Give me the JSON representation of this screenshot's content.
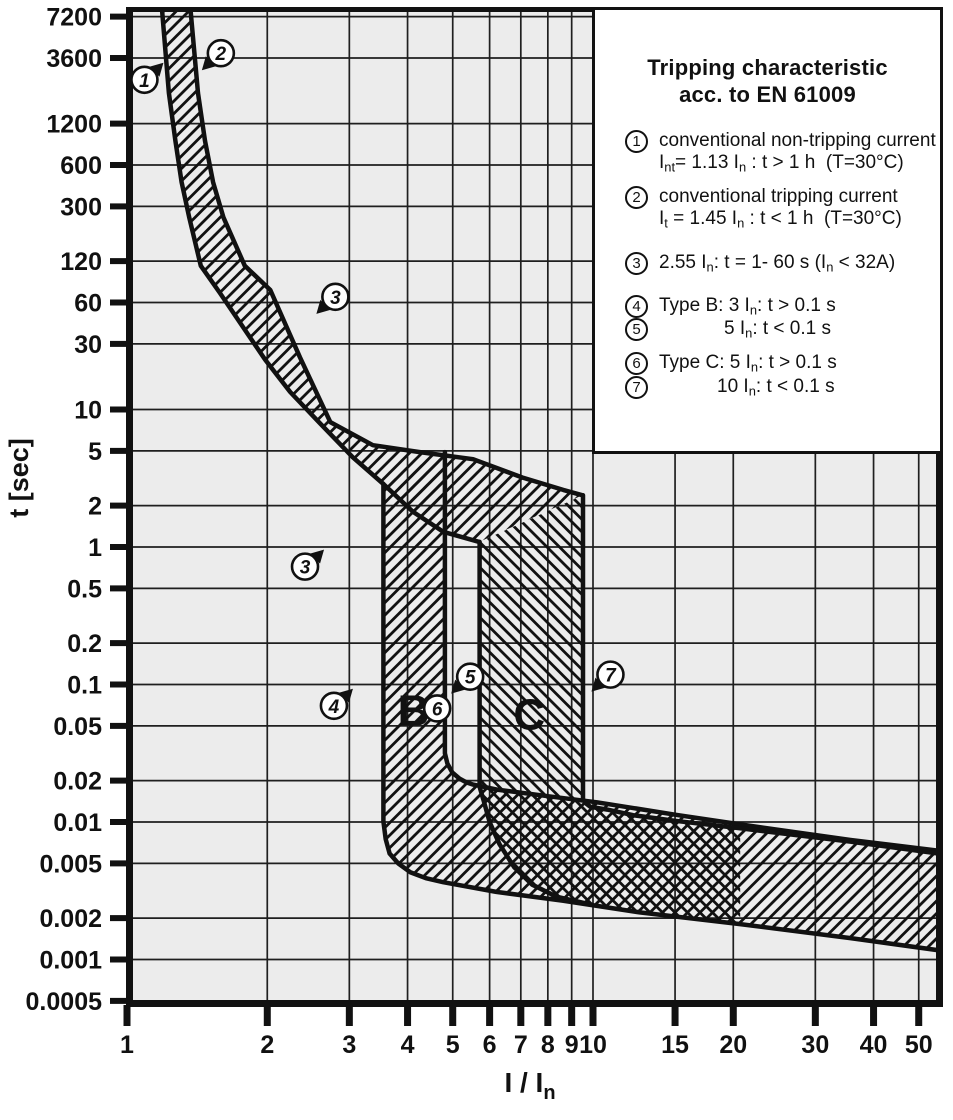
{
  "colors": {
    "ink": "#111111",
    "plot_bg": "#ececec",
    "paper": "#ffffff",
    "grid": "#1f1f1f"
  },
  "legend": {
    "title_line1": "Tripping characteristic",
    "title_line2": "acc. to EN 61009",
    "items": [
      {
        "num": "1",
        "line1": "conventional non-tripping current",
        "line2": "I_{nt}= 1.13 I_{n} : t > 1 h  (T=30°C)"
      },
      {
        "num": "2",
        "line1": "conventional tripping current",
        "line2": "I_{t} = 1.45 I_{n} : t < 1 h  (T=30°C)"
      },
      {
        "num": "3",
        "line1": "2.55 I_{n}: t = 1- 60 s (I_{n} < 32A)"
      },
      {
        "num": "4",
        "line1": "Type B: 3 I_{n}: t > 0.1 s"
      },
      {
        "num": "5",
        "line1": "5 I_{n}: t < 0.1 s"
      },
      {
        "num": "6",
        "line1": "Type C: 5 I_{n}: t > 0.1 s"
      },
      {
        "num": "7",
        "line1": "10 I_{n}: t < 0.1 s"
      }
    ]
  },
  "chart_data": {
    "type": "area",
    "title": "Tripping characteristic acc. to EN 61009",
    "xlabel": "I / I_{n}",
    "ylabel": "t [sec]",
    "x_scale": "log",
    "y_scale": "log",
    "xlim": [
      1,
      56
    ],
    "ylim": [
      0.0005,
      7800
    ],
    "grid": true,
    "x_ticks": [
      1,
      2,
      3,
      4,
      5,
      6,
      7,
      8,
      9,
      10,
      15,
      20,
      30,
      40,
      50
    ],
    "x_tick_labels": [
      "1",
      "2",
      "3",
      "4",
      "5",
      "6",
      "7",
      "8",
      "9",
      "10",
      "15",
      "20",
      "30",
      "40",
      "50"
    ],
    "y_ticks": [
      7200,
      3600,
      1200,
      600,
      300,
      120,
      60,
      30,
      10,
      5,
      2,
      1,
      0.5,
      0.2,
      0.1,
      0.05,
      0.02,
      0.01,
      0.005,
      0.002,
      0.001,
      0.0005
    ],
    "y_tick_labels": [
      "7200",
      "3600",
      "1200",
      "600",
      "300",
      "120",
      "60",
      "30",
      "10",
      "5",
      "2",
      "1",
      "0.5",
      "0.2",
      "0.1",
      "0.05",
      "0.02",
      "0.01",
      "0.005",
      "0.002",
      "0.001",
      "0.0005"
    ],
    "bands": {
      "thermal": {
        "hatch": "fwd",
        "curve1_nontripping_1_13In": [
          [
            1.19,
            7800
          ],
          [
            1.23,
            2000
          ],
          [
            1.27,
            900
          ],
          [
            1.31,
            450
          ],
          [
            1.36,
            250
          ],
          [
            1.44,
            111
          ],
          [
            1.58,
            71
          ],
          [
            1.98,
            23
          ],
          [
            2.24,
            13.4
          ],
          [
            2.58,
            8.1
          ],
          [
            3.05,
            4.5
          ],
          [
            3.55,
            2.87
          ],
          [
            4.11,
            1.8
          ],
          [
            4.77,
            1.29
          ],
          [
            5.7,
            1.09
          ]
        ],
        "curve2_tripping_1_45In": [
          [
            1.37,
            7800
          ],
          [
            1.42,
            2000
          ],
          [
            1.47,
            900
          ],
          [
            1.53,
            450
          ],
          [
            1.61,
            250
          ],
          [
            1.79,
            111
          ],
          [
            2.03,
            74
          ],
          [
            2.35,
            24
          ],
          [
            2.73,
            8.1
          ],
          [
            3.37,
            5.5
          ],
          [
            4.25,
            4.9
          ],
          [
            5.53,
            4.35
          ],
          [
            7.05,
            3.2
          ],
          [
            8.63,
            2.6
          ],
          [
            9.48,
            2.38
          ]
        ]
      },
      "type_b": {
        "hatch": "fwd",
        "magnetic_range_In": [
          3,
          5
        ],
        "left_bottom_edge": [
          [
            3.55,
            2.87
          ],
          [
            3.55,
            0.0101
          ],
          [
            3.59,
            0.0075
          ],
          [
            3.66,
            0.0059
          ],
          [
            3.82,
            0.005
          ],
          [
            4.06,
            0.0043
          ],
          [
            4.38,
            0.0039
          ],
          [
            4.77,
            0.00365
          ],
          [
            6.2,
            0.0031
          ],
          [
            8.6,
            0.00268
          ],
          [
            12.6,
            0.0022
          ],
          [
            20.7,
            0.00181
          ],
          [
            35.7,
            0.00143
          ],
          [
            57,
            0.00115
          ]
        ],
        "right_top_edge": [
          [
            4.81,
            4.9
          ],
          [
            4.81,
            0.0316
          ],
          [
            4.87,
            0.0266
          ],
          [
            4.99,
            0.0229
          ],
          [
            5.17,
            0.0207
          ],
          [
            5.35,
            0.0194
          ],
          [
            5.53,
            0.0187
          ],
          [
            6.22,
            0.0172
          ],
          [
            8.0,
            0.0154
          ],
          [
            10.2,
            0.0139
          ],
          [
            15,
            0.0113
          ],
          [
            20.7,
            0.0096
          ],
          [
            35.7,
            0.0074
          ],
          [
            57,
            0.0061
          ]
        ]
      },
      "type_c": {
        "hatch": "back",
        "magnetic_range_In": [
          5,
          10
        ],
        "left_edge": [
          [
            5.71,
            1.09
          ],
          [
            5.71,
            0.018
          ],
          [
            5.83,
            0.0142
          ],
          [
            6.0,
            0.01
          ],
          [
            6.3,
            0.0069
          ],
          [
            6.77,
            0.0047
          ],
          [
            7.41,
            0.0035
          ],
          [
            8.35,
            0.00286
          ],
          [
            9.95,
            0.0025
          ]
        ],
        "left_fill_bottom": [
          [
            12.6,
            0.0022
          ],
          [
            20.7,
            0.00181
          ],
          [
            20.7,
            0.0094
          ]
        ],
        "right_top_edge": [
          [
            9.52,
            2.38
          ],
          [
            9.52,
            0.0147
          ],
          [
            9.62,
            0.0138
          ],
          [
            9.87,
            0.0129
          ],
          [
            10.73,
            0.0123
          ],
          [
            12.2,
            0.0112
          ],
          [
            15,
            0.0102
          ],
          [
            20.7,
            0.009
          ],
          [
            35.7,
            0.0072
          ],
          [
            57,
            0.0058
          ]
        ]
      }
    },
    "markers": [
      {
        "num": "1",
        "I": 1.09,
        "t": 2500,
        "arrow": "ne"
      },
      {
        "num": "2",
        "I": 1.59,
        "t": 3900,
        "arrow": "sw"
      },
      {
        "num": "3",
        "I": 2.8,
        "t": 66,
        "arrow": "sw"
      },
      {
        "num": "3",
        "I": 2.41,
        "t": 0.72,
        "arrow": "ne"
      },
      {
        "num": "4",
        "I": 2.78,
        "t": 0.07,
        "arrow": "ne"
      },
      {
        "num": "5",
        "I": 5.45,
        "t": 0.114,
        "arrow": "sw"
      },
      {
        "num": "6",
        "I": 4.63,
        "t": 0.067,
        "arrow": "none"
      },
      {
        "num": "7",
        "I": 10.9,
        "t": 0.118,
        "arrow": "sw"
      }
    ],
    "region_labels": [
      {
        "text": "B",
        "I": 4.12,
        "t": 0.066
      },
      {
        "text": "C",
        "I": 7.3,
        "t": 0.0615
      }
    ]
  }
}
